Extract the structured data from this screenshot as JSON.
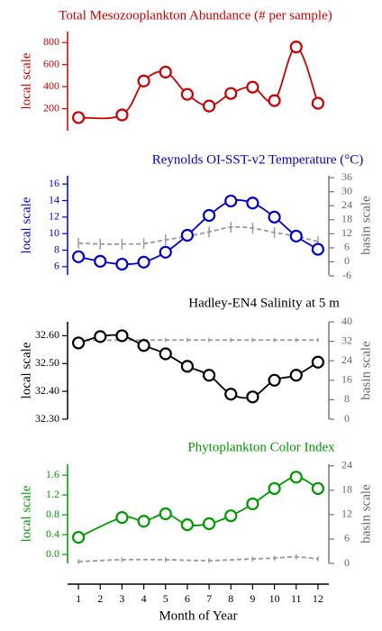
{
  "chart_data": [
    {
      "type": "line",
      "title": "Total Mesozooplankton Abundance (# per sample)",
      "ylabel": "local scale",
      "xlim": [
        0.5,
        12.5
      ],
      "ylim": [
        0,
        900
      ],
      "yticks": [
        200,
        400,
        600,
        800
      ],
      "series": [
        {
          "color": "#cc0000",
          "x": [
            1,
            3,
            4,
            5,
            6,
            7,
            8,
            9,
            10,
            11,
            12
          ],
          "values": [
            119,
            143,
            451,
            532,
            330,
            224,
            338,
            395,
            273,
            760,
            249
          ]
        }
      ]
    },
    {
      "type": "line",
      "title": "Reynolds OI-SST-v2 Temperature (°C)",
      "ylabel": "local scale",
      "y2label": "basin scale",
      "xlim": [
        0.5,
        12.5
      ],
      "ylim": [
        5,
        17
      ],
      "yticks": [
        6,
        8,
        10,
        12,
        14,
        16
      ],
      "y2lim": [
        -5.6,
        36.8
      ],
      "y2ticks": [
        -6,
        0,
        6,
        12,
        18,
        24,
        30,
        36
      ],
      "series": [
        {
          "color": "#0000cc",
          "x": [
            1,
            2,
            3,
            4,
            5,
            6,
            7,
            8,
            9,
            10,
            11,
            12
          ],
          "values": [
            7.2,
            6.65,
            6.3,
            6.55,
            7.75,
            9.8,
            12.2,
            13.95,
            13.7,
            12,
            9.7,
            8.1
          ]
        },
        {
          "color": "#999999",
          "axis": "y2",
          "dashed": true,
          "x": [
            1,
            2,
            3,
            4,
            5,
            6,
            7,
            8,
            9,
            10,
            11,
            12
          ],
          "values": [
            8,
            7.6,
            7.6,
            7.8,
            9.4,
            10.9,
            12.8,
            14.8,
            14.4,
            12.5,
            11,
            8.6
          ],
          "errors": [
            2.3,
            2.3,
            2.3,
            2.3,
            2.3,
            2.3,
            2.3,
            2.3,
            2.3,
            2.3,
            2.3,
            2.3
          ]
        }
      ]
    },
    {
      "type": "line",
      "title": "Hadley-EN4 Salinity at 5 m",
      "ylabel": "local scale",
      "y2label": "basin scale",
      "xlim": [
        0.5,
        12.5
      ],
      "ylim": [
        32.3,
        32.65
      ],
      "yticks": [
        {
          "value": 32.3,
          "label": "32.30"
        },
        {
          "value": 32.4,
          "label": "32.40"
        },
        {
          "value": 32.5,
          "label": "32.50"
        },
        {
          "value": 32.6,
          "label": "32.60"
        }
      ],
      "y2lim": [
        0,
        40
      ],
      "y2ticks": [
        0,
        8,
        16,
        24,
        32,
        40
      ],
      "series": [
        {
          "color": "#000000",
          "x": [
            1,
            2,
            3,
            4,
            5,
            6,
            7,
            8,
            9,
            10,
            11,
            12
          ],
          "values": [
            32.574,
            32.597,
            32.6,
            32.565,
            32.535,
            32.49,
            32.458,
            32.39,
            32.38,
            32.44,
            32.458,
            32.505
          ]
        },
        {
          "color": "#999999",
          "axis": "y2",
          "dashed": true,
          "x": [
            1,
            2,
            3,
            4,
            5,
            6,
            7,
            8,
            9,
            10,
            11,
            12
          ],
          "values": [
            32.4,
            32.4,
            32.5,
            32.5,
            32.5,
            32.5,
            32.5,
            32.5,
            32.5,
            32.5,
            32.5,
            32.5
          ],
          "errors": [
            0.8,
            0.8,
            0.8,
            0.8,
            0.8,
            0.8,
            0.8,
            0.8,
            0.8,
            0.8,
            0.8,
            0.8
          ]
        }
      ]
    },
    {
      "type": "line",
      "title": "Phytoplankton Color Index",
      "ylabel": "local scale",
      "y2label": "basin scale",
      "xlabel": "Month of Year",
      "xlim": [
        0.5,
        12.5
      ],
      "xticks": [
        1,
        2,
        3,
        4,
        5,
        6,
        7,
        8,
        9,
        10,
        11,
        12
      ],
      "ylim": [
        -0.18,
        1.82
      ],
      "yticks": [
        {
          "value": 0,
          "label": "0.0"
        },
        0.4,
        0.8,
        1.2,
        1.6
      ],
      "y2lim": [
        0,
        24.4
      ],
      "y2ticks": [
        0,
        6,
        12,
        18,
        24
      ],
      "series": [
        {
          "color": "#009900",
          "x": [
            1,
            3,
            4,
            5,
            6,
            7,
            8,
            9,
            10,
            11,
            12
          ],
          "values": [
            0.345,
            0.745,
            0.67,
            0.82,
            0.6,
            0.62,
            0.78,
            1.02,
            1.33,
            1.56,
            1.33
          ]
        },
        {
          "color": "#999999",
          "axis": "y2",
          "dashed": true,
          "x": [
            1,
            3,
            5,
            7,
            9,
            10,
            11,
            12
          ],
          "values": [
            0.45,
            0.9,
            0.9,
            0.7,
            1.1,
            1.3,
            1.6,
            1.1
          ],
          "errors": [
            0.6,
            0.6,
            0.6,
            0.6,
            0.6,
            0.6,
            0.6,
            0.6
          ]
        }
      ]
    }
  ]
}
